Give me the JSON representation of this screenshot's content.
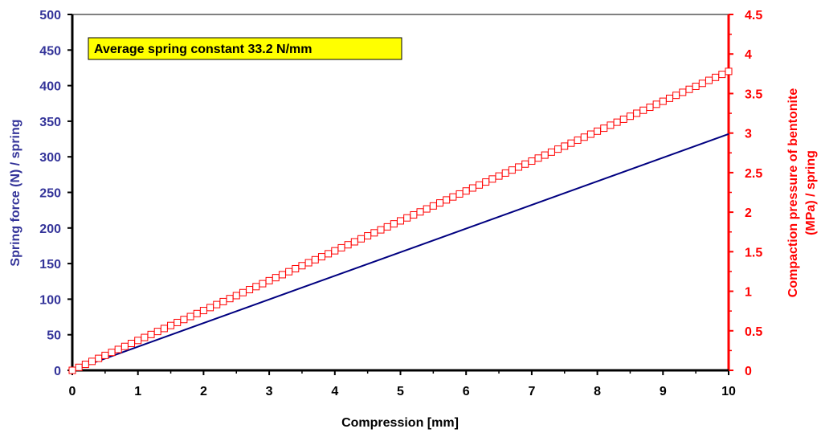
{
  "chart_data": {
    "type": "line",
    "title": "",
    "xlabel": "Compression [mm]",
    "ylabel_left": "Spring force (N) / spring",
    "ylabel_right_line1": "Compaction pressure of bentonite",
    "ylabel_right_line2": "(MPa) / spring",
    "xlim": [
      0,
      10
    ],
    "ylim_left": [
      0,
      500
    ],
    "ylim_right": [
      0,
      4.5
    ],
    "x_ticks": [
      "0",
      "1",
      "2",
      "3",
      "4",
      "5",
      "6",
      "7",
      "8",
      "9",
      "10"
    ],
    "y_left_ticks": [
      "0",
      "50",
      "100",
      "150",
      "200",
      "250",
      "300",
      "350",
      "400",
      "450",
      "500"
    ],
    "y_right_ticks": [
      "0",
      "0.5",
      "1",
      "1.5",
      "2",
      "2.5",
      "3",
      "3.5",
      "4",
      "4.5"
    ],
    "grid": false,
    "annotation": "Average spring constant 33.2 N/mm",
    "series": [
      {
        "axis": "left",
        "style": "line",
        "color": "#000080",
        "x": [
          0,
          10
        ],
        "y": [
          0,
          332
        ]
      },
      {
        "axis": "right",
        "style": "open-square-markers",
        "color": "#ff0000",
        "x_start": 0,
        "x_end": 10,
        "x_step": 0.1,
        "y_start": 0,
        "y_end": 3.78
      }
    ]
  },
  "colors": {
    "left_axis": "#333399",
    "right_axis": "#ff0000",
    "annotation_fill": "#ffff00",
    "frame_top": "#808080"
  }
}
